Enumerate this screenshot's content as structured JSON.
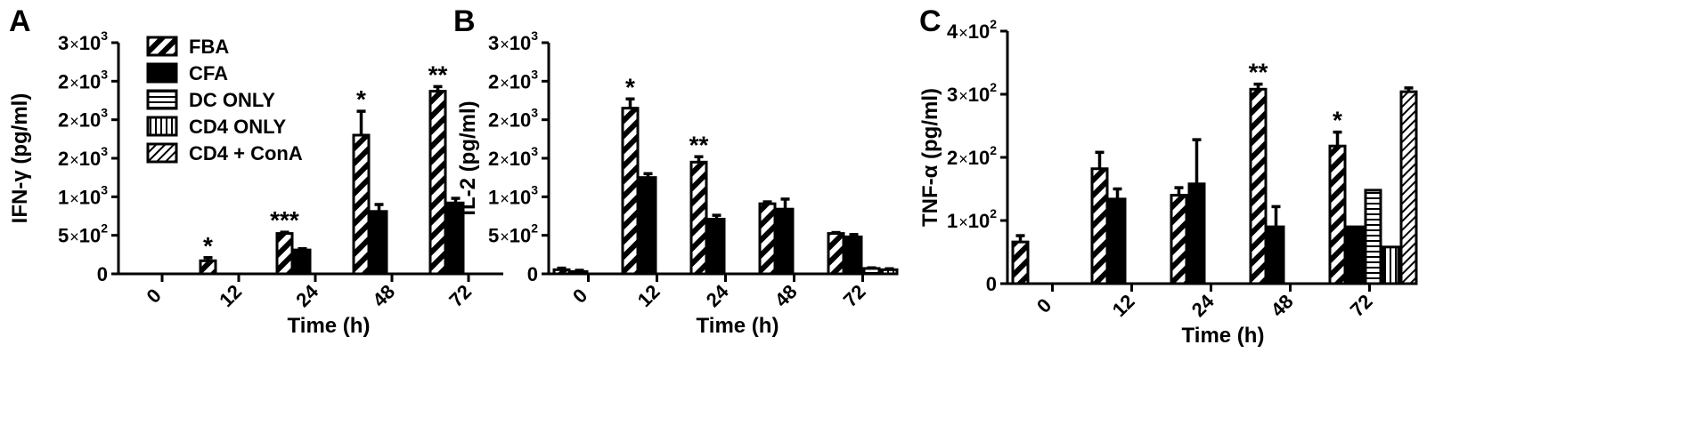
{
  "chart_data": [
    {
      "type": "bar",
      "panel_label": "A",
      "xlabel": "Time (h)",
      "ylabel": "IFN-γ (pg/ml)",
      "categories": [
        "0",
        "12",
        "24",
        "48",
        "72"
      ],
      "ylim": [
        0,
        1500
      ],
      "yticks": [
        {
          "value": 0,
          "label": "0"
        },
        {
          "value": 250,
          "label": "5×10²"
        },
        {
          "value": 500,
          "label": "1×10³"
        },
        {
          "value": 750,
          "label": "2×10³"
        },
        {
          "value": 1000,
          "label": "2×10³"
        },
        {
          "value": 1250,
          "label": "2×10³"
        },
        {
          "value": 1500,
          "label": "3×10³"
        }
      ],
      "legend_position": "top-left",
      "series": [
        {
          "name": "FBA",
          "values": [
            null,
            85,
            262,
            900,
            1185
          ],
          "errors": [
            null,
            20,
            8,
            155,
            30
          ]
        },
        {
          "name": "CFA",
          "values": [
            null,
            null,
            155,
            405,
            460
          ],
          "errors": [
            null,
            null,
            8,
            45,
            30
          ]
        },
        {
          "name": "DC ONLY",
          "values": [
            null,
            null,
            null,
            null,
            null
          ],
          "errors": [
            null,
            null,
            null,
            null,
            null
          ]
        },
        {
          "name": "CD4 ONLY",
          "values": [
            null,
            null,
            null,
            null,
            null
          ],
          "errors": [
            null,
            null,
            null,
            null,
            null
          ]
        },
        {
          "name": "CD4 + ConA",
          "values": [
            null,
            null,
            null,
            null,
            null
          ],
          "errors": [
            null,
            null,
            null,
            null,
            null
          ]
        }
      ],
      "annotations": [
        {
          "category": "12",
          "text": "*"
        },
        {
          "category": "24",
          "text": "***"
        },
        {
          "category": "48",
          "text": "*"
        },
        {
          "category": "72",
          "text": "**"
        }
      ]
    },
    {
      "type": "bar",
      "panel_label": "B",
      "xlabel": "Time (h)",
      "ylabel": "IL-2 (pg/ml)",
      "categories": [
        "0",
        "12",
        "24",
        "48",
        "72"
      ],
      "ylim": [
        0,
        1500
      ],
      "yticks": [
        {
          "value": 0,
          "label": "0"
        },
        {
          "value": 250,
          "label": "5×10²"
        },
        {
          "value": 500,
          "label": "1×10³"
        },
        {
          "value": 750,
          "label": "2×10³"
        },
        {
          "value": 1000,
          "label": "2×10³"
        },
        {
          "value": 1250,
          "label": "2×10³"
        },
        {
          "value": 1500,
          "label": "3×10³"
        }
      ],
      "series": [
        {
          "name": "FBA",
          "values": [
            27,
            1075,
            725,
            455,
            262
          ],
          "errors": [
            10,
            60,
            35,
            12,
            6
          ]
        },
        {
          "name": "CFA",
          "values": [
            15,
            625,
            355,
            420,
            240
          ],
          "errors": [
            8,
            25,
            25,
            65,
            15
          ]
        },
        {
          "name": "DC ONLY",
          "values": [
            null,
            null,
            null,
            null,
            35
          ],
          "errors": [
            null,
            null,
            null,
            null,
            4
          ]
        },
        {
          "name": "CD4 ONLY",
          "values": [
            null,
            null,
            null,
            null,
            27
          ],
          "errors": [
            null,
            null,
            null,
            null,
            6
          ]
        },
        {
          "name": "CD4 + ConA",
          "values": [
            null,
            null,
            null,
            null,
            null
          ],
          "errors": [
            null,
            null,
            null,
            null,
            null
          ]
        }
      ],
      "annotations": [
        {
          "category": "12",
          "text": "*"
        },
        {
          "category": "24",
          "text": "**"
        }
      ]
    },
    {
      "type": "bar",
      "panel_label": "C",
      "xlabel": "Time (h)",
      "ylabel": "TNF-α (pg/ml)",
      "categories": [
        "0",
        "12",
        "24",
        "48",
        "72"
      ],
      "ylim": [
        0,
        200
      ],
      "yticks": [
        {
          "value": 0,
          "label": "0"
        },
        {
          "value": 50,
          "label": "1×10²"
        },
        {
          "value": 100,
          "label": "2×10²"
        },
        {
          "value": 150,
          "label": "3×10²"
        },
        {
          "value": 200,
          "label": "4×10²"
        }
      ],
      "series": [
        {
          "name": "FBA",
          "values": [
            33,
            91,
            70,
            154,
            109
          ],
          "errors": [
            5,
            13,
            6,
            4,
            11
          ]
        },
        {
          "name": "CFA",
          "values": [
            null,
            67,
            79,
            45,
            45
          ],
          "errors": [
            null,
            8,
            35,
            16,
            0
          ]
        },
        {
          "name": "DC ONLY",
          "values": [
            null,
            null,
            null,
            null,
            74
          ],
          "errors": [
            null,
            null,
            null,
            null,
            0
          ]
        },
        {
          "name": "CD4 ONLY",
          "values": [
            null,
            null,
            null,
            null,
            29
          ],
          "errors": [
            null,
            null,
            null,
            null,
            0
          ]
        },
        {
          "name": "CD4 + ConA",
          "values": [
            null,
            null,
            null,
            null,
            152
          ],
          "errors": [
            null,
            null,
            null,
            null,
            3
          ]
        }
      ],
      "annotations": [
        {
          "category": "48",
          "text": "**"
        },
        {
          "category": "72",
          "text": "*"
        }
      ]
    }
  ]
}
